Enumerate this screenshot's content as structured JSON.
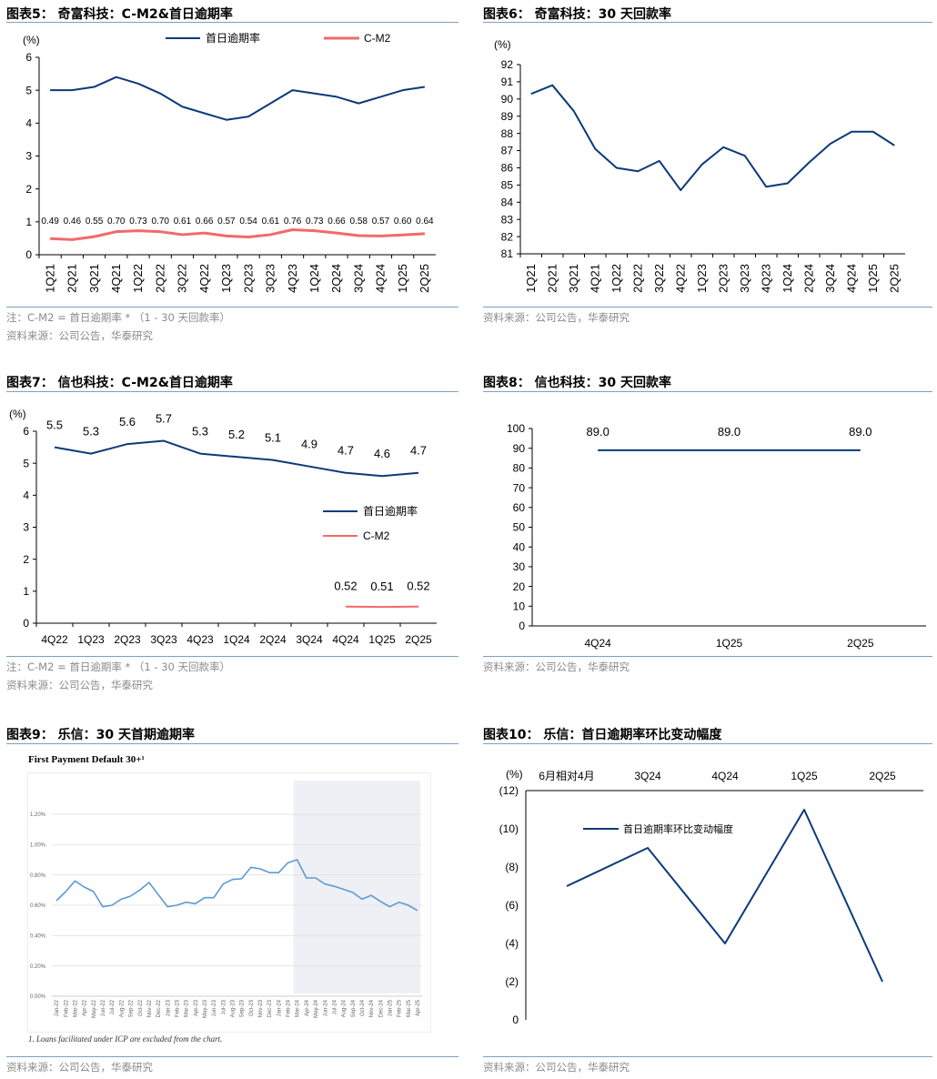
{
  "fig5": {
    "title": "图表5： 奇富科技：C-M2&首日逾期率",
    "note": "注：C-M2 = 首日逾期率 * （1 - 30 天回款率）",
    "source": "资料来源：公司公告，华泰研究"
  },
  "fig6": {
    "title": "图表6： 奇富科技：30 天回款率",
    "source": "资料来源：公司公告，华泰研究"
  },
  "fig7": {
    "title": "图表7： 信也科技：C-M2&首日逾期率",
    "note": "注：C-M2 = 首日逾期率 * （1 - 30 天回款率）",
    "source": "资料来源：公司公告，华泰研究"
  },
  "fig8": {
    "title": "图表8： 信也科技：30 天回款率",
    "source": "资料来源：公司公告，华泰研究"
  },
  "fig9": {
    "title": "图表9： 乐信：30 天首期逾期率",
    "image_title": "First Payment Default 30+¹",
    "footnote": "1.        Loans facilitated under ICP are excluded from the chart.",
    "source": "资料来源：公司公告，华泰研究"
  },
  "fig10": {
    "title": "图表10： 乐信：首日逾期率环比变动幅度",
    "source": "资料来源：公司公告，华泰研究"
  },
  "colors": {
    "navy": "#0b3a7a",
    "red": "#f26a6a",
    "light_blue": "#5b9bd5",
    "shade": "#eef0f5"
  },
  "chart_data": [
    {
      "id": "c5",
      "type": "line",
      "ylabel": "(%)",
      "ylim": [
        0,
        6
      ],
      "yticks": [
        "0",
        "1",
        "2",
        "3",
        "4",
        "5",
        "6"
      ],
      "categories": [
        "1Q21",
        "2Q21",
        "3Q21",
        "4Q21",
        "1Q22",
        "2Q22",
        "3Q22",
        "4Q22",
        "1Q23",
        "2Q23",
        "3Q23",
        "4Q23",
        "1Q24",
        "2Q24",
        "3Q24",
        "4Q24",
        "1Q25",
        "2Q25"
      ],
      "series": [
        {
          "name": "首日逾期率",
          "values": [
            5.0,
            5.0,
            5.1,
            5.4,
            5.2,
            4.9,
            4.5,
            4.3,
            4.1,
            4.2,
            4.6,
            5.0,
            4.9,
            4.8,
            4.6,
            4.8,
            5.0,
            5.1
          ]
        },
        {
          "name": "C-M2",
          "values": [
            0.49,
            0.46,
            0.55,
            0.7,
            0.73,
            0.7,
            0.61,
            0.66,
            0.57,
            0.54,
            0.61,
            0.76,
            0.73,
            0.66,
            0.58,
            0.57,
            0.6,
            0.64
          ],
          "labels": [
            "0.49",
            "0.46",
            "0.55",
            "0.70",
            "0.73",
            "0.70",
            "0.61",
            "0.66",
            "0.57",
            "0.54",
            "0.61",
            "0.76",
            "0.73",
            "0.66",
            "0.58",
            "0.57",
            "0.60",
            "0.64"
          ]
        }
      ],
      "legend": "top"
    },
    {
      "id": "c6",
      "type": "line",
      "ylabel": "(%)",
      "ylim": [
        81,
        92
      ],
      "yticks": [
        "81",
        "82",
        "83",
        "84",
        "85",
        "86",
        "87",
        "88",
        "89",
        "90",
        "91",
        "92"
      ],
      "categories": [
        "1Q21",
        "2Q21",
        "3Q21",
        "4Q21",
        "1Q22",
        "2Q22",
        "3Q22",
        "4Q22",
        "1Q23",
        "2Q23",
        "3Q23",
        "4Q23",
        "1Q24",
        "2Q24",
        "3Q24",
        "4Q24",
        "1Q25",
        "2Q25"
      ],
      "series": [
        {
          "name": "30天回款率",
          "values": [
            90.3,
            90.8,
            89.3,
            87.1,
            86.0,
            85.8,
            86.4,
            84.7,
            86.2,
            87.2,
            86.7,
            84.9,
            85.1,
            86.3,
            87.4,
            88.1,
            88.1,
            87.3
          ]
        }
      ]
    },
    {
      "id": "c7",
      "type": "line",
      "ylabel": "(%)",
      "ylim": [
        0,
        6
      ],
      "yticks": [
        "0",
        "1",
        "2",
        "3",
        "4",
        "5",
        "6"
      ],
      "categories": [
        "4Q22",
        "1Q23",
        "2Q23",
        "3Q23",
        "4Q23",
        "1Q24",
        "2Q24",
        "3Q24",
        "4Q24",
        "1Q25",
        "2Q25"
      ],
      "series": [
        {
          "name": "首日逾期率",
          "values": [
            5.5,
            5.3,
            5.6,
            5.7,
            5.3,
            5.2,
            5.1,
            4.9,
            4.7,
            4.6,
            4.7
          ],
          "labels": [
            "5.5",
            "5.3",
            "5.6",
            "5.7",
            "5.3",
            "5.2",
            "5.1",
            "4.9",
            "4.7",
            "4.6",
            "4.7"
          ]
        },
        {
          "name": "C-M2",
          "values": [
            null,
            null,
            null,
            null,
            null,
            null,
            null,
            null,
            0.52,
            0.51,
            0.52
          ],
          "labels": [
            "",
            "",
            "",
            "",
            "",
            "",
            "",
            "",
            "0.52",
            "0.51",
            "0.52"
          ]
        }
      ],
      "legend": "right"
    },
    {
      "id": "c8",
      "type": "line",
      "ylim": [
        0,
        100
      ],
      "yticks": [
        "0",
        "10",
        "20",
        "30",
        "40",
        "50",
        "60",
        "70",
        "80",
        "90",
        "100"
      ],
      "categories": [
        "4Q24",
        "1Q25",
        "2Q25"
      ],
      "series": [
        {
          "name": "30天回款率",
          "values": [
            89.0,
            89.0,
            89.0
          ],
          "labels": [
            "89.0",
            "89.0",
            "89.0"
          ]
        }
      ]
    },
    {
      "id": "c9",
      "type": "line",
      "title": "First Payment Default 30+",
      "ylim": [
        0,
        1.2
      ],
      "yticks": [
        "0.00%",
        "0.20%",
        "0.40%",
        "0.60%",
        "0.80%",
        "1.00%",
        "1.20%"
      ],
      "categories": [
        "Jan-22",
        "Feb-22",
        "Mar-22",
        "Apr-22",
        "May-22",
        "Jun-22",
        "Jul-22",
        "Aug-22",
        "Sep-22",
        "Oct-22",
        "Nov-22",
        "Dec-22",
        "Jan-23",
        "Feb-23",
        "Mar-23",
        "Apr-23",
        "May-23",
        "Jun-23",
        "Jul-23",
        "Aug-23",
        "Sep-23",
        "Oct-23",
        "Nov-23",
        "Dec-23",
        "Jan-24",
        "Feb-24",
        "Mar-24",
        "Apr-24",
        "May-24",
        "Jun-24",
        "Jul-24",
        "Aug-24",
        "Sep-24",
        "Oct-24",
        "Nov-24",
        "Dec-24",
        "Jan-25",
        "Feb-25",
        "Mar-25",
        "Apr-25"
      ],
      "series": [
        {
          "name": "FPD30+",
          "values": [
            0.63,
            0.69,
            0.76,
            0.72,
            0.69,
            0.59,
            0.6,
            0.64,
            0.66,
            0.7,
            0.75,
            0.67,
            0.59,
            0.6,
            0.62,
            0.61,
            0.65,
            0.65,
            0.74,
            0.77,
            0.775,
            0.85,
            0.84,
            0.815,
            0.815,
            0.88,
            0.9,
            0.78,
            0.78,
            0.74,
            0.725,
            0.705,
            0.685,
            0.64,
            0.665,
            0.625,
            0.59,
            0.62,
            0.6,
            0.565
          ]
        }
      ],
      "shaded_from": "Mar-24"
    },
    {
      "id": "c10",
      "type": "line",
      "ylabel": "(%)",
      "ylim": [
        -12,
        0
      ],
      "yticks": [
        "0",
        "(2)",
        "(4)",
        "(6)",
        "(8)",
        "(10)",
        "(12)"
      ],
      "categories": [
        "6月相对4月",
        "3Q24",
        "4Q24",
        "1Q25",
        "2Q25"
      ],
      "series": [
        {
          "name": "首日逾期率环比变动幅度",
          "values": [
            -7,
            -9,
            -4,
            -11,
            -2
          ]
        }
      ],
      "legend": "inside-top"
    }
  ]
}
